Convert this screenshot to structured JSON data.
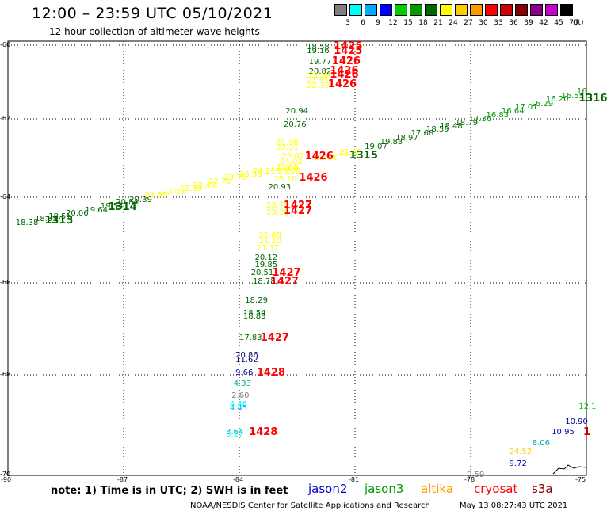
{
  "header": {
    "title": "12:00 – 23:59 UTC 05/10/2021",
    "subtitle": "12 hour collection of altimeter wave heights"
  },
  "scale": {
    "labels": [
      "3",
      "6",
      "9",
      "12",
      "15",
      "18",
      "21",
      "24",
      "27",
      "30",
      "33",
      "36",
      "39",
      "42",
      "45",
      "70",
      "(ft)"
    ],
    "colors": [
      "#808080",
      "#00ffff",
      "#00aaff",
      "#0000ff",
      "#00cc00",
      "#009900",
      "#006600",
      "#ffff00",
      "#ffcc00",
      "#ff9900",
      "#ff0000",
      "#cc0000",
      "#880000",
      "#880088",
      "#cc00cc",
      "#000000"
    ]
  },
  "map": {
    "lat_ticks": [
      "-60",
      "-62",
      "-64",
      "-66",
      "-68",
      "-70"
    ],
    "lon_ticks": [
      "-90",
      "-87",
      "-84",
      "-81",
      "-78",
      "-75"
    ],
    "observations": [
      {
        "t": "18.58",
        "lat": -60.05,
        "lon": -82.25,
        "c": "#006600"
      },
      {
        "t": "19.16",
        "lat": -60.16,
        "lon": -82.25,
        "c": "#006600"
      },
      {
        "t": "19.77",
        "lat": -60.46,
        "lon": -82.2,
        "c": "#006600"
      },
      {
        "t": "20.82",
        "lat": -60.71,
        "lon": -82.2,
        "c": "#006600"
      },
      {
        "t": "21.94",
        "lat": -60.82,
        "lon": -82.2,
        "c": "#ffff00"
      },
      {
        "t": "21.91",
        "lat": -60.95,
        "lon": -82.25,
        "c": "#ffff00"
      },
      {
        "t": "22.73",
        "lat": -61.1,
        "lon": -82.25,
        "c": "#ffff00"
      },
      {
        "t": "20.94",
        "lat": -61.8,
        "lon": -82.8,
        "c": "#006600"
      },
      {
        "t": "20.76",
        "lat": -62.15,
        "lon": -82.85,
        "c": "#006600"
      },
      {
        "t": "21.98",
        "lat": -62.62,
        "lon": -83.05,
        "c": "#ffff00"
      },
      {
        "t": "23.31",
        "lat": -62.74,
        "lon": -83.05,
        "c": "#ffff00"
      },
      {
        "t": "23.02",
        "lat": -62.95,
        "lon": -82.9,
        "c": "#ffff00"
      },
      {
        "t": "24.02",
        "lat": -63.1,
        "lon": -82.95,
        "c": "#ffff00"
      },
      {
        "t": "22.86",
        "lat": -63.25,
        "lon": -83.05,
        "c": "#ffff00"
      },
      {
        "t": "23.98",
        "lat": -63.35,
        "lon": -83.0,
        "c": "#ffff00"
      },
      {
        "t": "25.10",
        "lat": -63.55,
        "lon": -83.1,
        "c": "#ffff00"
      },
      {
        "t": "20.93",
        "lat": -63.75,
        "lon": -83.25,
        "c": "#006600"
      },
      {
        "t": "23.75",
        "lat": -64.2,
        "lon": -83.3,
        "c": "#ffff00"
      },
      {
        "t": "23.26",
        "lat": -64.36,
        "lon": -83.3,
        "c": "#ffff00"
      },
      {
        "t": "22.88",
        "lat": -64.9,
        "lon": -83.5,
        "c": "#ffff00"
      },
      {
        "t": "21.10",
        "lat": -65.02,
        "lon": -83.5,
        "c": "#ffff00"
      },
      {
        "t": "21.17",
        "lat": -65.2,
        "lon": -83.55,
        "c": "#ffff00"
      },
      {
        "t": "20.12",
        "lat": -65.42,
        "lon": -83.6,
        "c": "#006600"
      },
      {
        "t": "19.85",
        "lat": -65.58,
        "lon": -83.6,
        "c": "#006600"
      },
      {
        "t": "20.51",
        "lat": -65.76,
        "lon": -83.7,
        "c": "#006600"
      },
      {
        "t": "18.78",
        "lat": -65.98,
        "lon": -83.65,
        "c": "#006600"
      },
      {
        "t": "18.29",
        "lat": -66.38,
        "lon": -83.85,
        "c": "#006600"
      },
      {
        "t": "18.54",
        "lat": -66.66,
        "lon": -83.9,
        "c": "#006600"
      },
      {
        "t": "18.83",
        "lat": -66.74,
        "lon": -83.9,
        "c": "#006600"
      },
      {
        "t": "17.83",
        "lat": -67.2,
        "lon": -84.0,
        "c": "#006600"
      },
      {
        "t": "20.86",
        "lat": -67.58,
        "lon": -84.1,
        "c": "#000066"
      },
      {
        "t": "11.62",
        "lat": -67.68,
        "lon": -84.1,
        "c": "#000066"
      },
      {
        "t": "9.66",
        "lat": -67.96,
        "lon": -84.1,
        "c": "#000099"
      },
      {
        "t": "4.33",
        "lat": -68.18,
        "lon": -84.15,
        "c": "#00aaaa"
      },
      {
        "t": "2.60",
        "lat": -68.42,
        "lon": -84.2,
        "c": "#808080"
      },
      {
        "t": "4.46",
        "lat": -68.6,
        "lon": -84.25,
        "c": "#00ffff"
      },
      {
        "t": "4.45",
        "lat": -68.67,
        "lon": -84.25,
        "c": "#00aaff"
      },
      {
        "t": "3.64",
        "lat": -69.15,
        "lon": -84.35,
        "c": "#00aaaa"
      },
      {
        "t": "3.17",
        "lat": -69.2,
        "lon": -84.35,
        "c": "#00ffff"
      },
      {
        "t": "18.38",
        "lat": -64.6,
        "lon": -89.8,
        "c": "#006600"
      },
      {
        "t": "18.35",
        "lat": -64.5,
        "lon": -89.3,
        "c": "#006600"
      },
      {
        "t": "18.51",
        "lat": -64.45,
        "lon": -88.95,
        "c": "#006600"
      },
      {
        "t": "20.06",
        "lat": -64.38,
        "lon": -88.5,
        "c": "#006600"
      },
      {
        "t": "19.64",
        "lat": -64.3,
        "lon": -88.0,
        "c": "#006600"
      },
      {
        "t": "19.54",
        "lat": -64.22,
        "lon": -87.6,
        "c": "#006600"
      },
      {
        "t": "20.84",
        "lat": -64.12,
        "lon": -87.2,
        "c": "#006600"
      },
      {
        "t": "20.39",
        "lat": -64.06,
        "lon": -86.85,
        "c": "#006600"
      },
      {
        "t": "21.55",
        "lat": -63.95,
        "lon": -86.45,
        "c": "#ffff00"
      },
      {
        "t": "22.05",
        "lat": -63.86,
        "lon": -86.0,
        "c": "#ffff00"
      },
      {
        "t": "22.30",
        "lat": -63.78,
        "lon": -85.55,
        "c": "#ffff00"
      },
      {
        "t": "22.49",
        "lat": -63.7,
        "lon": -85.2,
        "c": "#ffff00"
      },
      {
        "t": "22.76",
        "lat": -63.6,
        "lon": -84.8,
        "c": "#ffff00"
      },
      {
        "t": "23.75",
        "lat": -63.5,
        "lon": -84.4,
        "c": "#ffff00"
      },
      {
        "t": "23.38",
        "lat": -63.43,
        "lon": -84.0,
        "c": "#ffff00"
      },
      {
        "t": "24.21",
        "lat": -63.35,
        "lon": -83.65,
        "c": "#ffff00"
      },
      {
        "t": "22.80",
        "lat": -63.28,
        "lon": -83.2,
        "c": "#ffff00"
      },
      {
        "t": "22.51",
        "lat": -63.0,
        "lon": -82.05,
        "c": "#ffff00"
      },
      {
        "t": "21.43",
        "lat": -62.9,
        "lon": -81.75,
        "c": "#ffff00"
      },
      {
        "t": "21.28",
        "lat": -62.85,
        "lon": -81.4,
        "c": "#ffff00"
      },
      {
        "t": "19.07",
        "lat": -62.72,
        "lon": -80.75,
        "c": "#006600"
      },
      {
        "t": "19.83",
        "lat": -62.6,
        "lon": -80.35,
        "c": "#006600"
      },
      {
        "t": "18.97",
        "lat": -62.5,
        "lon": -79.95,
        "c": "#006600"
      },
      {
        "t": "17.68",
        "lat": -62.38,
        "lon": -79.55,
        "c": "#006600"
      },
      {
        "t": "18.59",
        "lat": -62.28,
        "lon": -79.15,
        "c": "#006600"
      },
      {
        "t": "18.48",
        "lat": -62.2,
        "lon": -78.8,
        "c": "#006600"
      },
      {
        "t": "18.79",
        "lat": -62.12,
        "lon": -78.4,
        "c": "#006600"
      },
      {
        "t": "17.36",
        "lat": -62.0,
        "lon": -78.05,
        "c": "#009900"
      },
      {
        "t": "16.83",
        "lat": -61.9,
        "lon": -77.6,
        "c": "#009900"
      },
      {
        "t": "16.64",
        "lat": -61.8,
        "lon": -77.2,
        "c": "#009900"
      },
      {
        "t": "17.01",
        "lat": -61.68,
        "lon": -76.85,
        "c": "#009900"
      },
      {
        "t": "16.29",
        "lat": -61.6,
        "lon": -76.45,
        "c": "#009900"
      },
      {
        "t": "16.20",
        "lat": -61.48,
        "lon": -76.05,
        "c": "#009900"
      },
      {
        "t": "16.53",
        "lat": -61.38,
        "lon": -75.65,
        "c": "#009900"
      },
      {
        "t": "16",
        "lat": -61.25,
        "lon": -75.25,
        "c": "#009900"
      },
      {
        "t": "10.90",
        "lat": -68.95,
        "lon": -75.55,
        "c": "#000099"
      },
      {
        "t": "10.95",
        "lat": -69.15,
        "lon": -75.9,
        "c": "#000099"
      },
      {
        "t": "8.06",
        "lat": -69.38,
        "lon": -76.4,
        "c": "#00aaaa"
      },
      {
        "t": "24.52",
        "lat": -69.55,
        "lon": -77.0,
        "c": "#ffcc00"
      },
      {
        "t": "9.72",
        "lat": -69.78,
        "lon": -77.0,
        "c": "#0000cc"
      },
      {
        "t": "0.59",
        "lat": -70.0,
        "lon": -78.1,
        "c": "#808080"
      },
      {
        "t": "12.1",
        "lat": -68.65,
        "lon": -75.2,
        "c": "#00cc00"
      }
    ],
    "passes": [
      {
        "t": "1425",
        "lat": -60.04,
        "lon": -81.55,
        "c": "#ff0000"
      },
      {
        "t": "1425",
        "lat": -60.16,
        "lon": -81.55,
        "c": "#ff0000"
      },
      {
        "t": "1426",
        "lat": -60.45,
        "lon": -81.6,
        "c": "#ff0000"
      },
      {
        "t": "1426",
        "lat": -60.7,
        "lon": -81.65,
        "c": "#ff0000"
      },
      {
        "t": "1426",
        "lat": -60.8,
        "lon": -81.65,
        "c": "#ff0000"
      },
      {
        "t": "1426",
        "lat": -61.06,
        "lon": -81.7,
        "c": "#ff0000"
      },
      {
        "t": "1426",
        "lat": -62.95,
        "lon": -82.3,
        "c": "#ff0000"
      },
      {
        "t": "1426",
        "lat": -63.5,
        "lon": -82.45,
        "c": "#ff0000"
      },
      {
        "t": "1427",
        "lat": -64.2,
        "lon": -82.85,
        "c": "#ff0000"
      },
      {
        "t": "1427",
        "lat": -64.32,
        "lon": -82.85,
        "c": "#ff0000"
      },
      {
        "t": "1427",
        "lat": -65.76,
        "lon": -83.15,
        "c": "#ff0000"
      },
      {
        "t": "1427",
        "lat": -65.98,
        "lon": -83.2,
        "c": "#ff0000"
      },
      {
        "t": "1427",
        "lat": -67.2,
        "lon": -83.45,
        "c": "#ff0000"
      },
      {
        "t": "1428",
        "lat": -67.96,
        "lon": -83.55,
        "c": "#ff0000"
      },
      {
        "t": "1428",
        "lat": -69.15,
        "lon": -83.75,
        "c": "#ff0000"
      },
      {
        "t": "1313",
        "lat": -64.55,
        "lon": -89.05,
        "c": "#006600"
      },
      {
        "t": "1314",
        "lat": -64.24,
        "lon": -87.4,
        "c": "#006600"
      },
      {
        "t": "1315",
        "lat": -62.93,
        "lon": -81.15,
        "c": "#006600"
      },
      {
        "t": "1316",
        "lat": -61.45,
        "lon": -75.2,
        "c": "#006600"
      },
      {
        "t": "1",
        "lat": -69.15,
        "lon": -75.05,
        "c": "#cc0000"
      }
    ]
  },
  "footer": {
    "note": "note: 1) Time is in UTC; 2) SWH is in feet",
    "satellites": [
      {
        "name": "jason2",
        "color": "#0000cc"
      },
      {
        "name": "jason3",
        "color": "#009900"
      },
      {
        "name": "altika",
        "color": "#ff9900"
      },
      {
        "name": "cryosat",
        "color": "#ff0000"
      },
      {
        "name": "s3a",
        "color": "#880000"
      }
    ],
    "credit": "NOAA/NESDIS Center for Satellite Applications and Research",
    "timestamp": "May 13 08:27:43 UTC 2021"
  }
}
